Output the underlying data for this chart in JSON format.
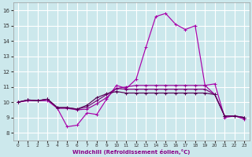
{
  "xlabel": "Windchill (Refroidissement éolien,°C)",
  "bg_color": "#cce8ec",
  "grid_color": "#ffffff",
  "xlim": [
    -0.5,
    23.5
  ],
  "ylim": [
    7.5,
    16.5
  ],
  "yticks": [
    8,
    9,
    10,
    11,
    12,
    13,
    14,
    15,
    16
  ],
  "xticks": [
    0,
    1,
    2,
    3,
    4,
    5,
    6,
    7,
    8,
    9,
    10,
    11,
    12,
    13,
    14,
    15,
    16,
    17,
    18,
    19,
    20,
    21,
    22,
    23
  ],
  "line1_x": [
    0,
    1,
    2,
    3,
    4,
    5,
    6,
    7,
    8,
    9,
    10,
    11,
    12,
    13,
    14,
    15,
    16,
    17,
    18,
    19,
    20,
    21,
    22,
    23
  ],
  "line1_y": [
    10.0,
    10.1,
    10.1,
    10.1,
    9.6,
    8.4,
    8.5,
    9.3,
    9.2,
    10.2,
    11.1,
    10.9,
    11.5,
    13.6,
    15.6,
    15.8,
    15.1,
    14.75,
    15.0,
    11.1,
    11.2,
    9.0,
    9.1,
    8.9
  ],
  "line2_x": [
    0,
    1,
    2,
    3,
    4,
    5,
    6,
    7,
    8,
    9,
    10,
    11,
    12,
    13,
    14,
    15,
    16,
    17,
    18,
    19,
    20,
    21,
    22,
    23
  ],
  "line2_y": [
    10.0,
    10.15,
    10.1,
    10.2,
    9.6,
    9.6,
    9.5,
    9.55,
    9.9,
    10.3,
    10.9,
    11.0,
    11.1,
    11.1,
    11.1,
    11.1,
    11.1,
    11.1,
    11.1,
    11.1,
    10.5,
    9.1,
    9.1,
    9.0
  ],
  "line3_x": [
    0,
    1,
    2,
    3,
    4,
    5,
    6,
    7,
    8,
    9,
    10,
    11,
    12,
    13,
    14,
    15,
    16,
    17,
    18,
    19,
    20,
    21,
    22,
    23
  ],
  "line3_y": [
    10.0,
    10.15,
    10.1,
    10.2,
    9.65,
    9.65,
    9.55,
    9.7,
    10.1,
    10.5,
    10.9,
    10.85,
    10.85,
    10.85,
    10.85,
    10.85,
    10.85,
    10.85,
    10.85,
    10.85,
    10.5,
    9.1,
    9.1,
    9.0
  ],
  "line4_x": [
    0,
    1,
    2,
    3,
    4,
    5,
    6,
    7,
    8,
    9,
    10,
    11,
    12,
    13,
    14,
    15,
    16,
    17,
    18,
    19,
    20,
    21,
    22,
    23
  ],
  "line4_y": [
    10.0,
    10.15,
    10.1,
    10.2,
    9.65,
    9.65,
    9.55,
    9.8,
    10.3,
    10.55,
    10.7,
    10.6,
    10.6,
    10.6,
    10.6,
    10.6,
    10.6,
    10.6,
    10.6,
    10.6,
    10.5,
    9.1,
    9.1,
    9.0
  ],
  "line_colors": [
    "#aa00aa",
    "#990099",
    "#770077",
    "#550055"
  ],
  "marker_color": "#cc44cc",
  "marker_size": 1.8,
  "line_width": 0.85
}
